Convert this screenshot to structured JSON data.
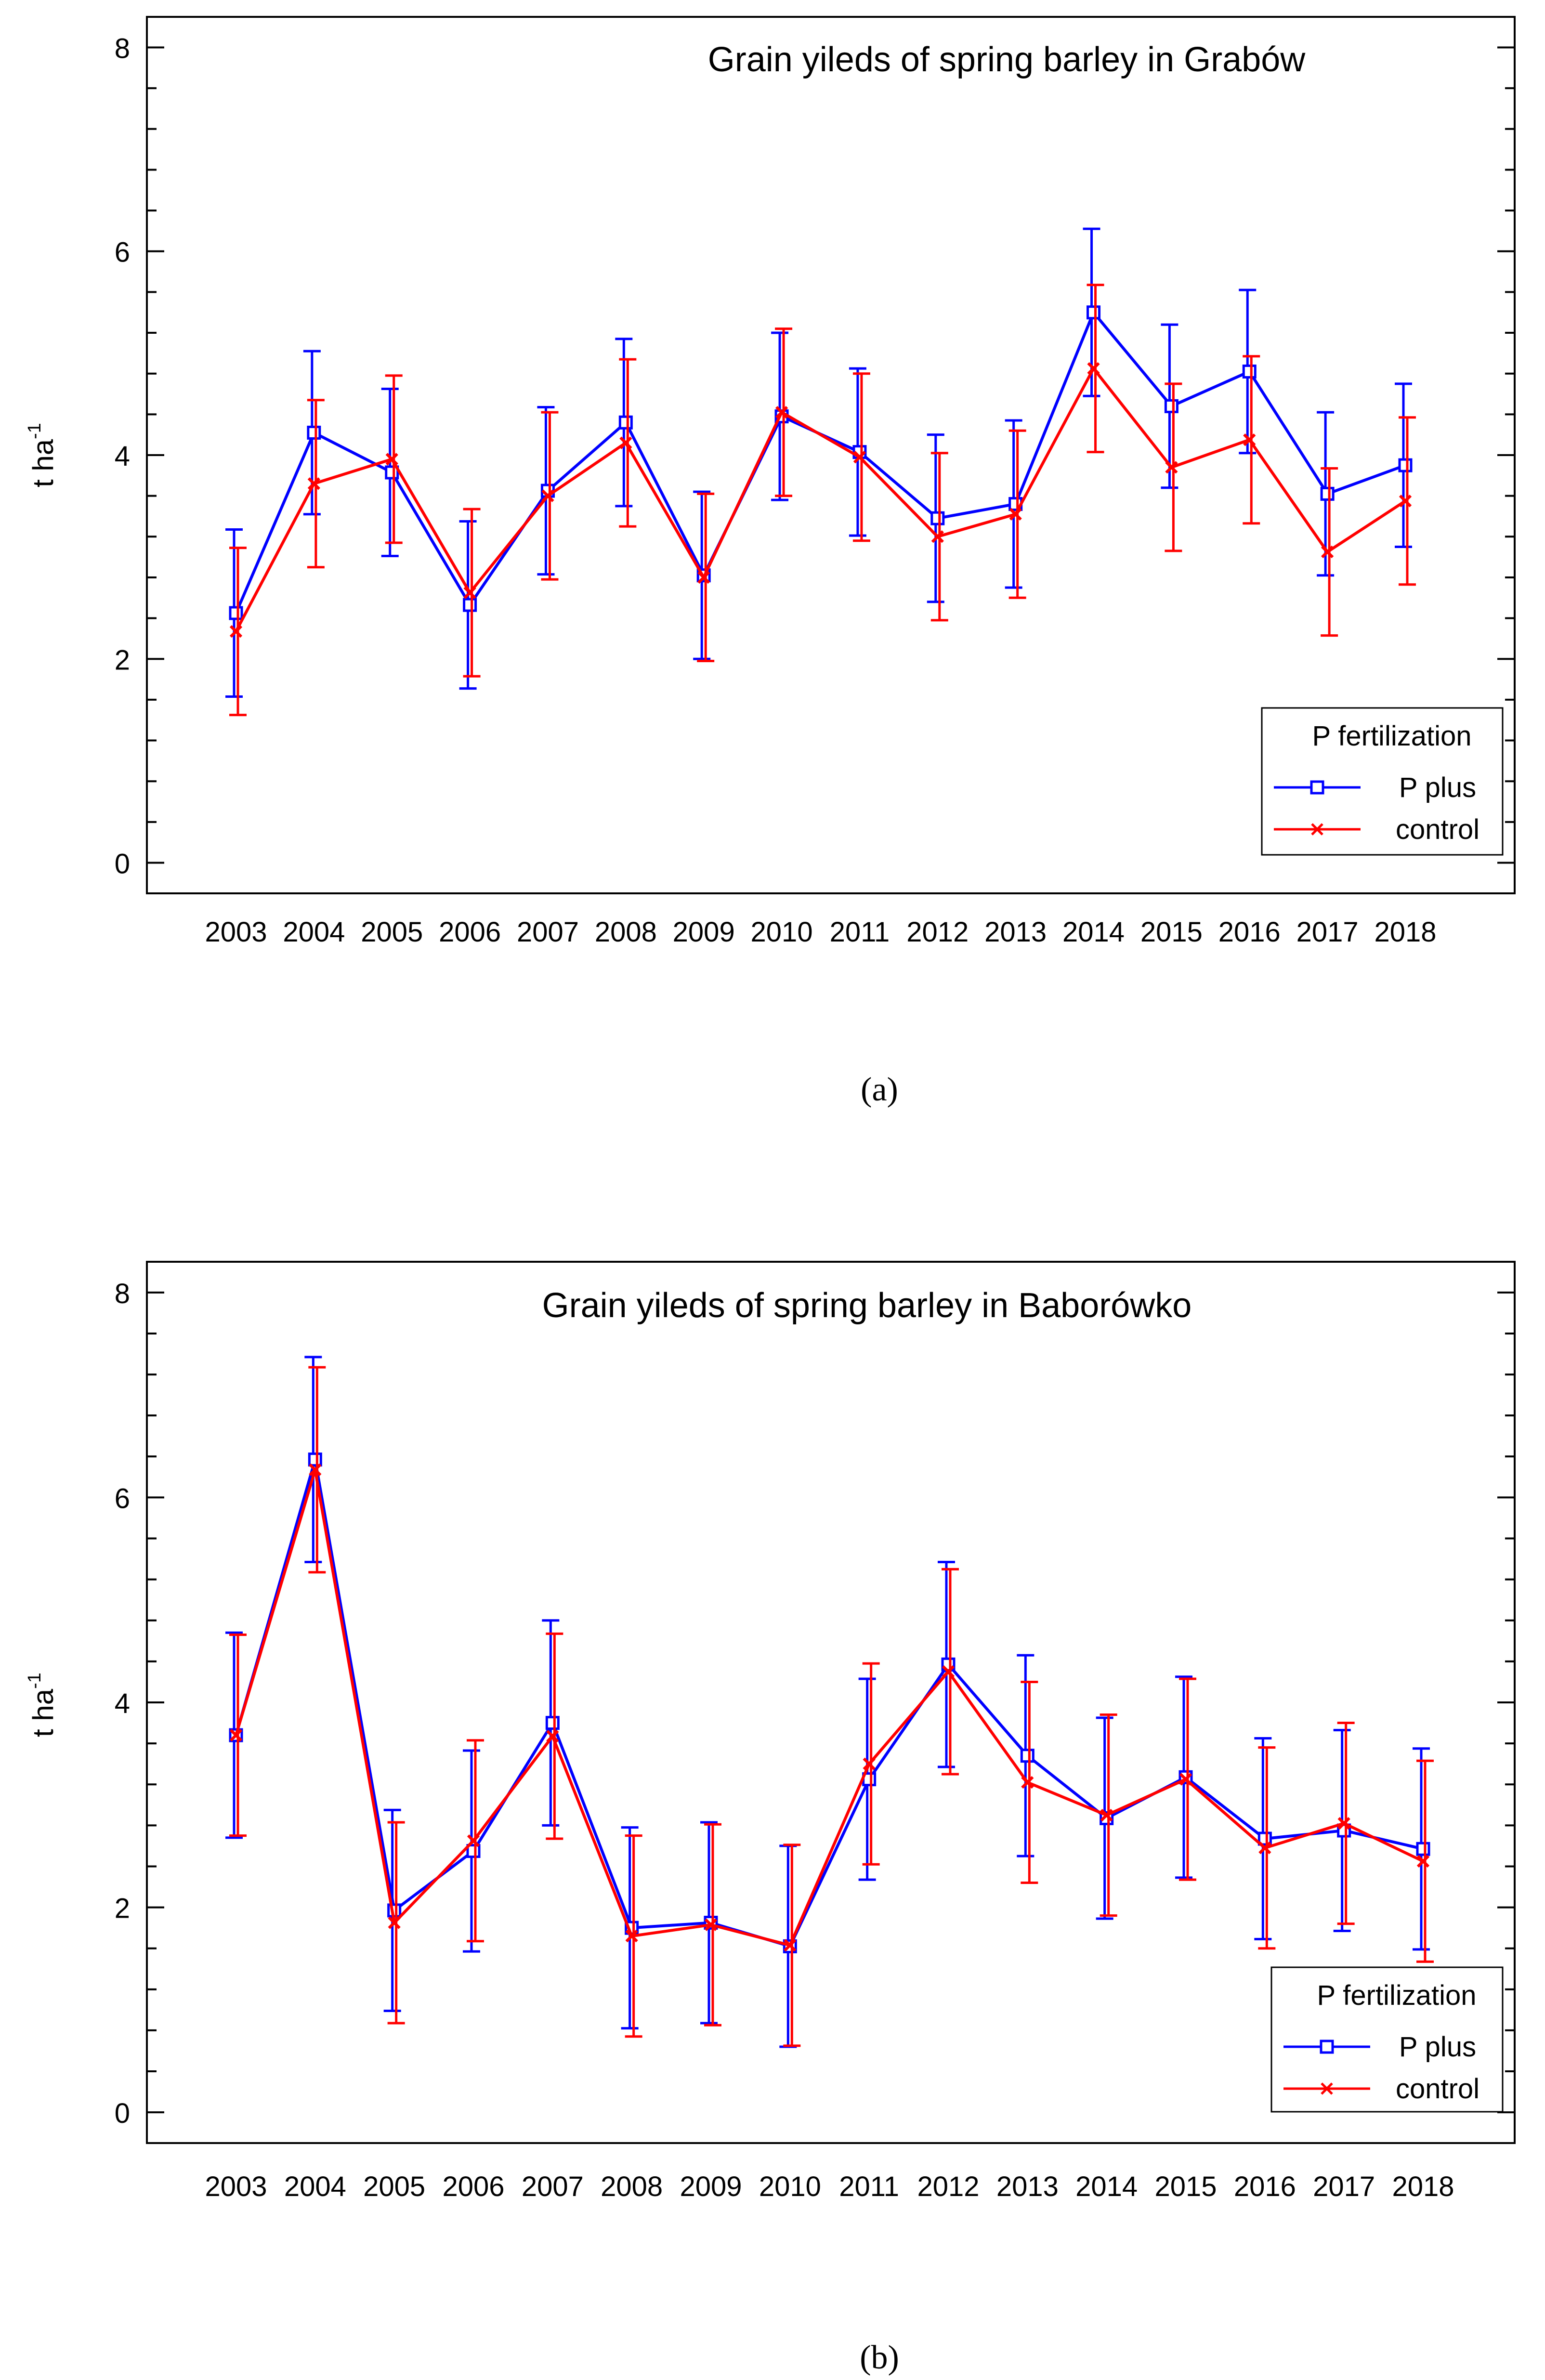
{
  "chart_data": [
    {
      "type": "line",
      "panel_label": "(a)",
      "title": "Grain yileds of spring barley in Grabów",
      "ylabel": "t ha",
      "ylabel_sup": "-1",
      "xlabel": "",
      "ylim": [
        -0.3,
        8.3
      ],
      "yticks": [
        0,
        2,
        4,
        6,
        8
      ],
      "categories": [
        "2003",
        "2004",
        "2005",
        "2006",
        "2007",
        "2008",
        "2009",
        "2010",
        "2011",
        "2012",
        "2013",
        "2014",
        "2015",
        "2016",
        "2017",
        "2018"
      ],
      "legend": {
        "title": "P fertilization",
        "position": "bottom-right"
      },
      "series": [
        {
          "name": "P plus",
          "color": "#0000ff",
          "marker": "square",
          "values": [
            2.45,
            4.22,
            3.83,
            2.53,
            3.65,
            4.32,
            2.82,
            4.38,
            4.03,
            3.38,
            3.52,
            5.4,
            4.48,
            4.82,
            3.62,
            3.9
          ],
          "error": [
            0.82,
            0.8,
            0.82,
            0.82,
            0.82,
            0.82,
            0.82,
            0.82,
            0.82,
            0.82,
            0.82,
            0.82,
            0.8,
            0.8,
            0.8,
            0.8
          ]
        },
        {
          "name": "control",
          "color": "#ff0000",
          "marker": "x",
          "values": [
            2.27,
            3.72,
            3.96,
            2.65,
            3.6,
            4.12,
            2.8,
            4.42,
            3.98,
            3.2,
            3.42,
            4.85,
            3.88,
            4.15,
            3.05,
            3.55
          ],
          "error": [
            0.82,
            0.82,
            0.82,
            0.82,
            0.82,
            0.82,
            0.82,
            0.82,
            0.82,
            0.82,
            0.82,
            0.82,
            0.82,
            0.82,
            0.82,
            0.82
          ]
        }
      ]
    },
    {
      "type": "line",
      "panel_label": "(b)",
      "title": "Grain yileds of spring barley in Baborówko",
      "ylabel": "t ha",
      "ylabel_sup": "-1",
      "xlabel": "",
      "ylim": [
        -0.3,
        8.3
      ],
      "yticks": [
        0,
        2,
        4,
        6,
        8
      ],
      "categories": [
        "2003",
        "2004",
        "2005",
        "2006",
        "2007",
        "2008",
        "2009",
        "2010",
        "2011",
        "2012",
        "2013",
        "2014",
        "2015",
        "2016",
        "2017",
        "2018"
      ],
      "legend": {
        "title": "P fertilization",
        "position": "bottom-right"
      },
      "series": [
        {
          "name": "P plus",
          "color": "#0000ff",
          "marker": "square",
          "values": [
            3.68,
            6.37,
            1.97,
            2.55,
            3.8,
            1.8,
            1.85,
            1.62,
            3.25,
            4.37,
            3.48,
            2.87,
            3.27,
            2.67,
            2.75,
            2.57
          ],
          "error": [
            1.0,
            1.0,
            0.98,
            0.98,
            1.0,
            0.98,
            0.98,
            0.98,
            0.98,
            1.0,
            0.98,
            0.98,
            0.98,
            0.98,
            0.98,
            0.98
          ]
        },
        {
          "name": "control",
          "color": "#ff0000",
          "marker": "x",
          "values": [
            3.68,
            6.27,
            1.85,
            2.65,
            3.67,
            1.72,
            1.83,
            1.63,
            3.4,
            4.3,
            3.22,
            2.9,
            3.25,
            2.58,
            2.82,
            2.45
          ],
          "error": [
            0.98,
            1.0,
            0.98,
            0.98,
            1.0,
            0.98,
            0.98,
            0.98,
            0.98,
            1.0,
            0.98,
            0.98,
            0.98,
            0.98,
            0.98,
            0.98
          ]
        }
      ]
    }
  ]
}
